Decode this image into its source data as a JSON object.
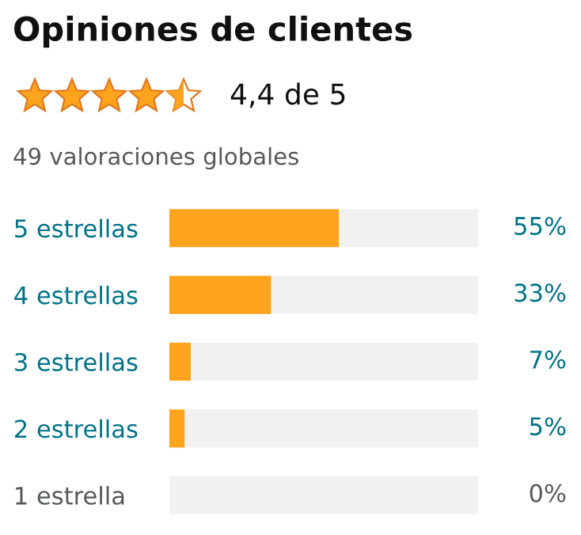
{
  "chart_data": {
    "type": "bar",
    "orientation": "horizontal",
    "stacked": true,
    "title": "Opiniones de clientes",
    "subtitle": "4,4 de 5",
    "annotations": [
      "49 valoraciones globales"
    ],
    "categories": [
      "5 estrellas",
      "4 estrellas",
      "3 estrellas",
      "2 estrellas",
      "1 estrella"
    ],
    "series": [
      {
        "color": "#ffa41c",
        "values": [
          55,
          33,
          7,
          5,
          0
        ],
        "value_labels": [
          "55%",
          "33%",
          "7%",
          "5%",
          "0%"
        ]
      },
      {
        "color": "#f0f2f2",
        "values": [
          45,
          67,
          93,
          95,
          100
        ]
      }
    ],
    "xlim": [
      0,
      100
    ],
    "tick_labels": "y",
    "grid": false,
    "legend": false
  }
}
